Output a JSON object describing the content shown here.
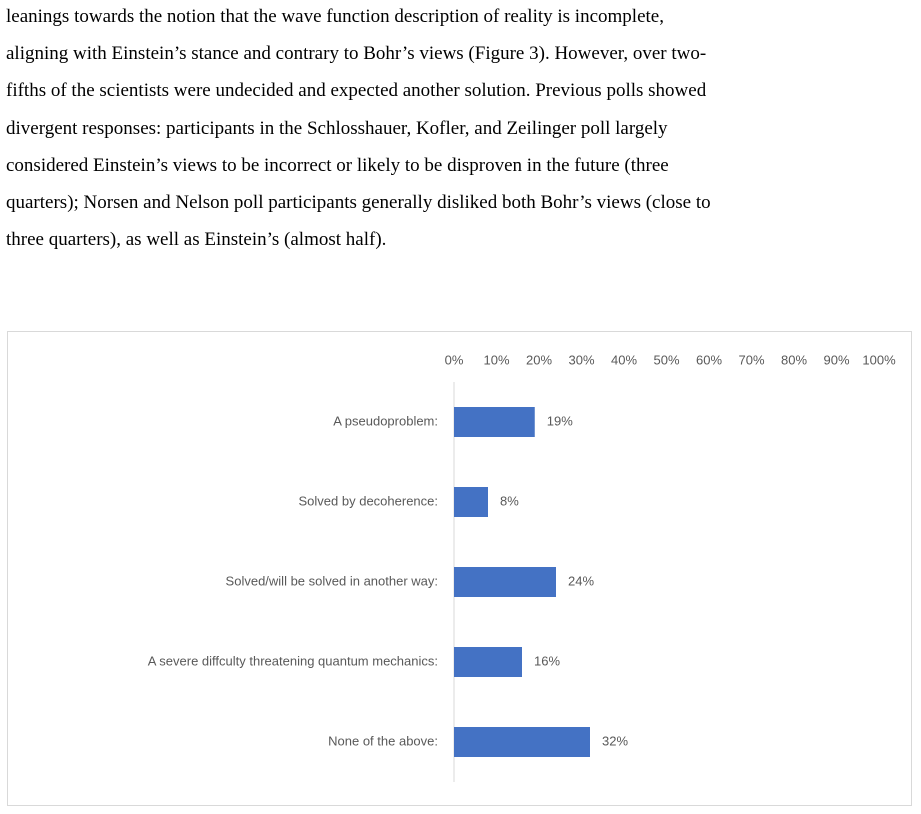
{
  "paragraph_lines": [
    "leanings towards the notion that the wave function description of reality is incomplete,",
    "aligning with Einstein’s stance and contrary to Bohr’s views (Figure 3). However, over two-",
    "fifths of the scientists were undecided and expected another solution. Previous polls showed",
    "divergent responses: participants in the Schlosshauer, Kofler, and Zeilinger poll largely",
    "considered Einstein’s views to be incorrect or likely to be disproven in the future (three",
    "quarters); Norsen and Nelson poll participants generally disliked both Bohr’s views (close to",
    "three quarters), as well as Einstein’s (almost half)."
  ],
  "chart_data": {
    "type": "hbar",
    "categories": [
      "A pseudoproblem:",
      "Solved by decoherence:",
      "Solved/will be solved in another way:",
      "A severe diffculty threatening quantum mechanics:",
      "None of the above:"
    ],
    "values": [
      19,
      8,
      24,
      16,
      32
    ],
    "value_labels": [
      "19%",
      "8%",
      "24%",
      "16%",
      "32%"
    ],
    "color": "#4472c4",
    "xlim": [
      0,
      100
    ],
    "xticks": [
      {
        "value": 0,
        "label": "0%"
      },
      {
        "value": 10,
        "label": "10%"
      },
      {
        "value": 20,
        "label": "20%"
      },
      {
        "value": 30,
        "label": "30%"
      },
      {
        "value": 40,
        "label": "40%"
      },
      {
        "value": 50,
        "label": "50%"
      },
      {
        "value": 60,
        "label": "60%"
      },
      {
        "value": 70,
        "label": "70%"
      },
      {
        "value": 80,
        "label": "80%"
      },
      {
        "value": 90,
        "label": "90%"
      },
      {
        "value": 100,
        "label": "100%"
      }
    ]
  }
}
